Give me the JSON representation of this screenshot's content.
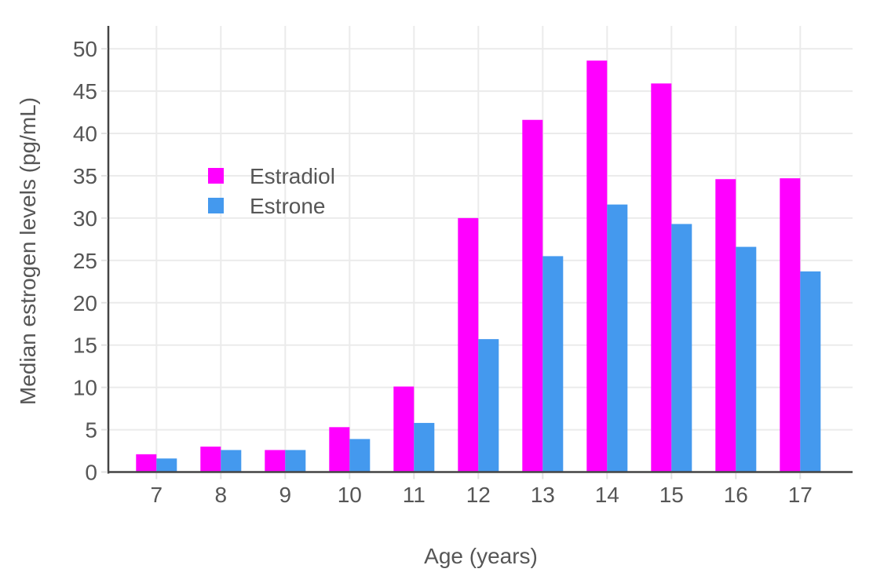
{
  "chart_data": {
    "type": "bar",
    "title": "",
    "xlabel": "Age (years)",
    "ylabel": "Median estrogen levels (pg/mL)",
    "categories": [
      "7",
      "8",
      "9",
      "10",
      "11",
      "12",
      "13",
      "14",
      "15",
      "16",
      "17"
    ],
    "yticks": [
      0,
      5,
      10,
      15,
      20,
      25,
      30,
      35,
      40,
      45,
      50
    ],
    "ylim": [
      0,
      52.7
    ],
    "grid": true,
    "legend_position": "inside-top-left",
    "series": [
      {
        "name": "Estradiol",
        "color": "#FF00FF",
        "values": [
          2.1,
          3.0,
          2.6,
          5.3,
          10.1,
          30.0,
          41.6,
          48.6,
          45.9,
          34.6,
          34.7
        ]
      },
      {
        "name": "Estrone",
        "color": "#4499EE",
        "values": [
          1.6,
          2.6,
          2.6,
          3.9,
          5.8,
          15.7,
          25.5,
          31.6,
          29.3,
          26.6,
          23.7
        ]
      }
    ]
  },
  "style": {
    "background_color": "#FFFFFF",
    "grid_color": "#EBEBEB",
    "axis_line_color": "#444444",
    "tick_mark_color": "#E2E2E2",
    "text_color": "#565656"
  }
}
